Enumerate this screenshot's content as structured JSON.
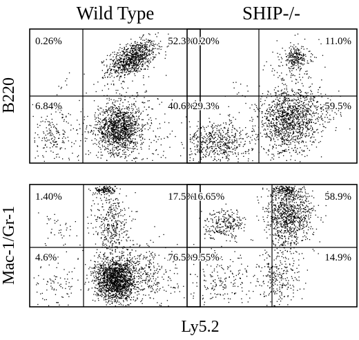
{
  "chart_data": {
    "type": "scatter",
    "kind": "flow-cytometry quadrant dot plots",
    "columns": [
      "Wild Type",
      "SHIP-/-"
    ],
    "row_labels": [
      "B220",
      "Mac-1/Gr-1"
    ],
    "xlabel": "Ly5.2",
    "grid": false,
    "panels": [
      {
        "column": "Wild Type",
        "row": "B220",
        "quadrants": {
          "upper_left": "0.26%",
          "upper_right": "52.3%",
          "lower_left": "6.84%",
          "lower_right": "40.6%"
        },
        "populations": [
          {
            "cx": 0.6,
            "cy": 0.78,
            "sx": 0.07,
            "sy": 0.06,
            "n": 900,
            "tilt": 0.5
          },
          {
            "cx": 0.52,
            "cy": 0.26,
            "sx": 0.06,
            "sy": 0.09,
            "n": 1100,
            "tilt": 0
          },
          {
            "cx": 0.58,
            "cy": 0.26,
            "sx": 0.16,
            "sy": 0.18,
            "n": 350,
            "tilt": 0
          },
          {
            "cx": 0.14,
            "cy": 0.2,
            "sx": 0.08,
            "sy": 0.1,
            "n": 180,
            "tilt": 0
          },
          {
            "cx": 0.2,
            "cy": 0.6,
            "sx": 0.04,
            "sy": 0.05,
            "n": 8,
            "tilt": 0
          }
        ]
      },
      {
        "column": "SHIP-/-",
        "row": "B220",
        "quadrants": {
          "upper_left": "0.20%",
          "upper_right": "11.0%",
          "lower_left": "29.3%",
          "lower_right": "59.5%"
        },
        "populations": [
          {
            "cx": 0.64,
            "cy": 0.79,
            "sx": 0.04,
            "sy": 0.04,
            "n": 200,
            "tilt": 0
          },
          {
            "cx": 0.62,
            "cy": 0.7,
            "sx": 0.08,
            "sy": 0.1,
            "n": 100,
            "tilt": 0
          },
          {
            "cx": 0.58,
            "cy": 0.3,
            "sx": 0.08,
            "sy": 0.12,
            "n": 1000,
            "tilt": 0
          },
          {
            "cx": 0.7,
            "cy": 0.38,
            "sx": 0.1,
            "sy": 0.09,
            "n": 350,
            "tilt": 0
          },
          {
            "cx": 0.17,
            "cy": 0.16,
            "sx": 0.1,
            "sy": 0.08,
            "n": 550,
            "tilt": 0
          },
          {
            "cx": 0.3,
            "cy": 0.55,
            "sx": 0.06,
            "sy": 0.06,
            "n": 10,
            "tilt": 0
          }
        ]
      },
      {
        "column": "Wild Type",
        "row": "Mac-1/Gr-1",
        "quadrants": {
          "upper_left": "1.40%",
          "upper_right": "17.5%",
          "lower_left": "4.6%",
          "lower_right": "76.5%"
        },
        "populations": [
          {
            "cx": 0.44,
            "cy": 0.96,
            "sx": 0.03,
            "sy": 0.02,
            "n": 140,
            "tilt": 0
          },
          {
            "cx": 0.48,
            "cy": 0.68,
            "sx": 0.05,
            "sy": 0.14,
            "n": 350,
            "tilt": 0
          },
          {
            "cx": 0.5,
            "cy": 0.22,
            "sx": 0.06,
            "sy": 0.09,
            "n": 1500,
            "tilt": 0
          },
          {
            "cx": 0.62,
            "cy": 0.28,
            "sx": 0.12,
            "sy": 0.12,
            "n": 500,
            "tilt": 0
          },
          {
            "cx": 0.14,
            "cy": 0.18,
            "sx": 0.09,
            "sy": 0.1,
            "n": 90,
            "tilt": 0
          },
          {
            "cx": 0.18,
            "cy": 0.64,
            "sx": 0.08,
            "sy": 0.1,
            "n": 40,
            "tilt": 0
          }
        ]
      },
      {
        "column": "SHIP-/-",
        "row": "Mac-1/Gr-1",
        "quadrants": {
          "upper_left": "16.65%",
          "upper_right": "58.9%",
          "lower_left": "9.55%",
          "lower_right": "14.9%"
        },
        "populations": [
          {
            "cx": 0.6,
            "cy": 0.74,
            "sx": 0.07,
            "sy": 0.12,
            "n": 900,
            "tilt": 0
          },
          {
            "cx": 0.58,
            "cy": 0.96,
            "sx": 0.05,
            "sy": 0.03,
            "n": 200,
            "tilt": 0
          },
          {
            "cx": 0.22,
            "cy": 0.68,
            "sx": 0.06,
            "sy": 0.06,
            "n": 260,
            "tilt": 0
          },
          {
            "cx": 0.54,
            "cy": 0.25,
            "sx": 0.06,
            "sy": 0.12,
            "n": 260,
            "tilt": 0
          },
          {
            "cx": 0.2,
            "cy": 0.2,
            "sx": 0.1,
            "sy": 0.12,
            "n": 200,
            "tilt": 0
          }
        ]
      }
    ]
  }
}
